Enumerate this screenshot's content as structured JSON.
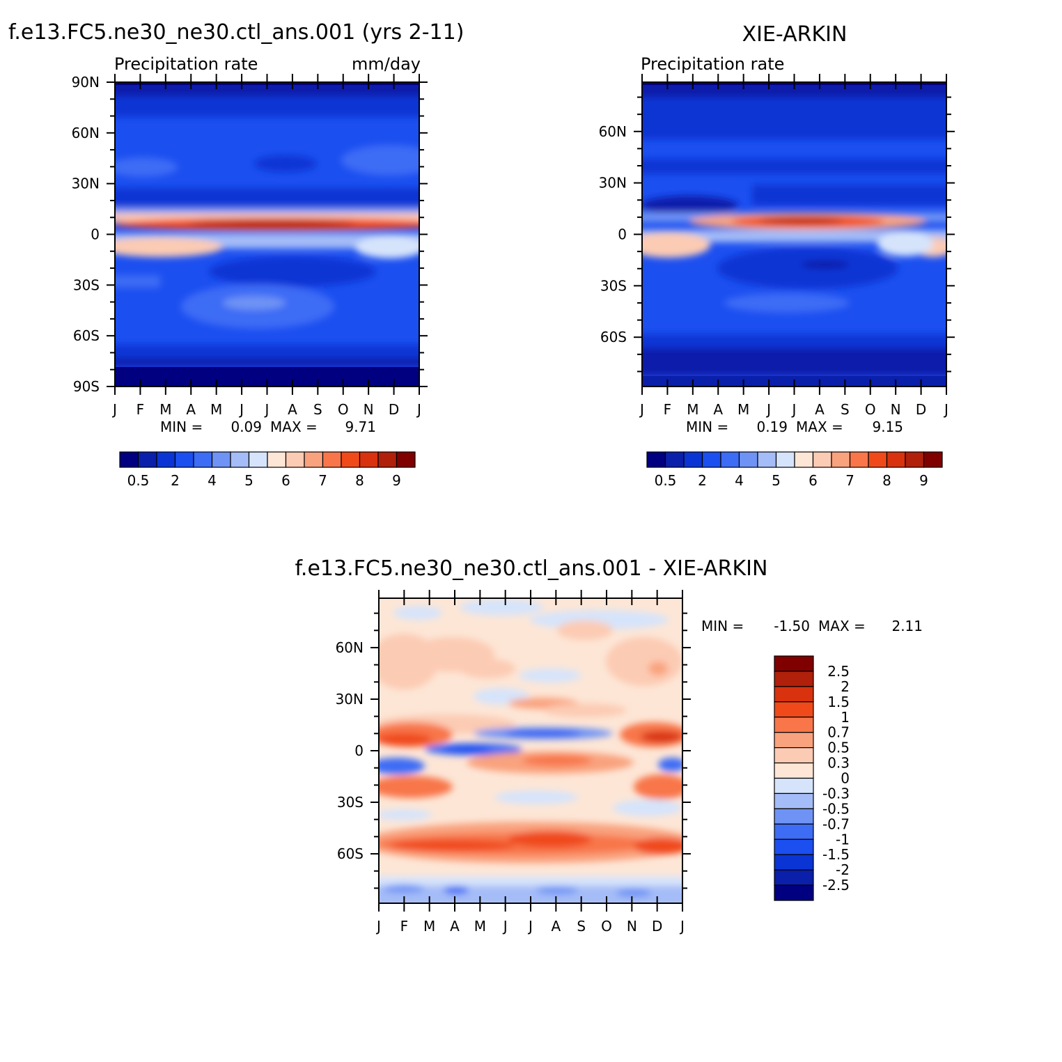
{
  "chart_data": [
    {
      "type": "heatmap",
      "title": "f.e13.FC5.ne30_ne30.ctl_ans.001 (yrs 2-11)",
      "left_label": "Precipitation rate",
      "right_label": "mm/day",
      "x_tick_labels": [
        "J",
        "F",
        "M",
        "A",
        "M",
        "J",
        "J",
        "A",
        "S",
        "O",
        "N",
        "D",
        "J"
      ],
      "y_tick_labels": [
        "90N",
        "60N",
        "30N",
        "0",
        "30S",
        "60S",
        "90S"
      ],
      "y_tick_values": [
        90,
        60,
        30,
        0,
        -30,
        -60,
        -90
      ],
      "ylim": [
        -90,
        90
      ],
      "min_label": "MIN =",
      "min_value": "0.09",
      "max_label": "MAX =",
      "max_value": "9.71",
      "colorbar_labels": [
        "0.5",
        "2",
        "4",
        "5",
        "6",
        "7",
        "8",
        "9"
      ],
      "colors": [
        "#000080",
        "#0a1faa",
        "#0a35d4",
        "#1c4ff0",
        "#3d6cf5",
        "#6e93f5",
        "#a4bcf7",
        "#d6e4fb",
        "#fde6d6",
        "#fccbb3",
        "#f9a27e",
        "#f8764a",
        "#f04a1a",
        "#d8320e",
        "#b0200a",
        "#800000"
      ]
    },
    {
      "type": "heatmap",
      "title": "XIE-ARKIN",
      "left_label": "Precipitation rate",
      "right_label": "",
      "x_tick_labels": [
        "J",
        "F",
        "M",
        "A",
        "M",
        "J",
        "J",
        "A",
        "S",
        "O",
        "N",
        "D",
        "J"
      ],
      "y_tick_labels": [
        "60N",
        "30N",
        "0",
        "30S",
        "60S"
      ],
      "y_tick_values": [
        60,
        30,
        0,
        -30,
        -60
      ],
      "ylim": [
        -88.75,
        88.75
      ],
      "min_label": "MIN =",
      "min_value": "0.19",
      "max_label": "MAX =",
      "max_value": "9.15",
      "colorbar_labels": [
        "0.5",
        "2",
        "4",
        "5",
        "6",
        "7",
        "8",
        "9"
      ],
      "colors": [
        "#000080",
        "#0a1faa",
        "#0a35d4",
        "#1c4ff0",
        "#3d6cf5",
        "#6e93f5",
        "#a4bcf7",
        "#d6e4fb",
        "#fde6d6",
        "#fccbb3",
        "#f9a27e",
        "#f8764a",
        "#f04a1a",
        "#d8320e",
        "#b0200a",
        "#800000"
      ]
    },
    {
      "type": "heatmap",
      "title": "f.e13.FC5.ne30_ne30.ctl_ans.001 - XIE-ARKIN",
      "x_tick_labels": [
        "J",
        "F",
        "M",
        "A",
        "M",
        "J",
        "J",
        "A",
        "S",
        "O",
        "N",
        "D",
        "J"
      ],
      "y_tick_labels": [
        "60N",
        "30N",
        "0",
        "30S",
        "60S"
      ],
      "y_tick_values": [
        60,
        30,
        0,
        -30,
        -60
      ],
      "ylim": [
        -88.75,
        88.75
      ],
      "min_label": "MIN =",
      "min_value": "-1.50",
      "max_label": "MAX =",
      "max_value": "2.11",
      "colorbar_labels": [
        "2.5",
        "2",
        "1.5",
        "1",
        "0.7",
        "0.5",
        "0.3",
        "0",
        "-0.3",
        "-0.5",
        "-0.7",
        "-1",
        "-1.5",
        "-2",
        "-2.5"
      ],
      "colors": [
        "#800000",
        "#b0200a",
        "#d8320e",
        "#f04a1a",
        "#f8764a",
        "#f9a27e",
        "#fccbb3",
        "#fde6d6",
        "#d6e4fb",
        "#a4bcf7",
        "#6e93f5",
        "#3d6cf5",
        "#1c4ff0",
        "#0a35d4",
        "#0a1faa",
        "#000080"
      ]
    }
  ]
}
